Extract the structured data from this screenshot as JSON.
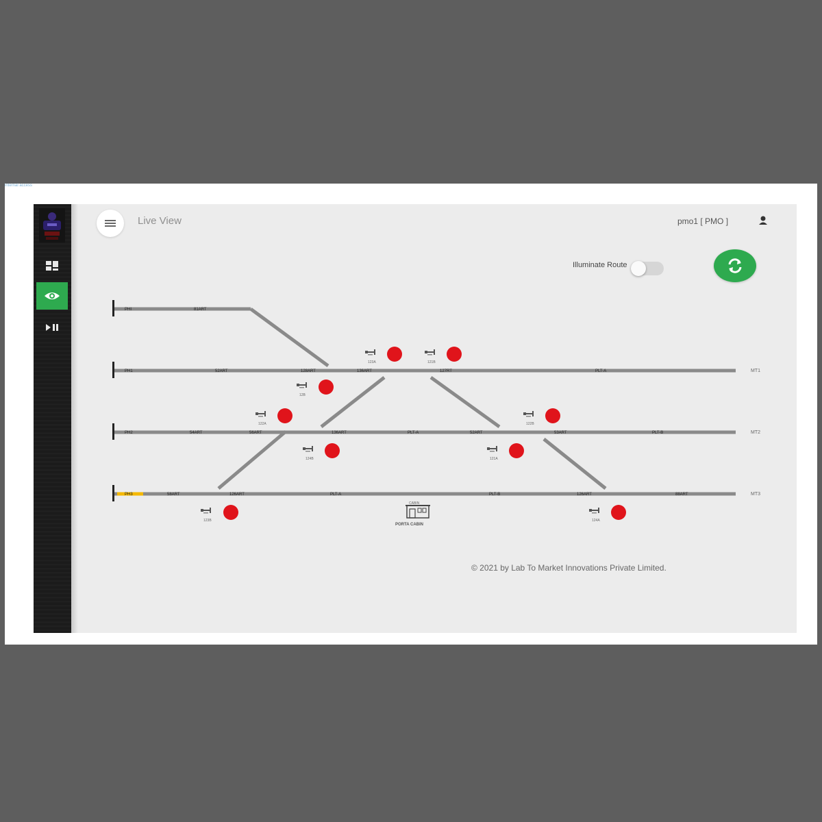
{
  "corner_link": "internal access",
  "header": {
    "title": "Live View",
    "user": "pmo1 [ PMO ]"
  },
  "sidebar": {
    "items": [
      {
        "icon": "dashboard-icon"
      },
      {
        "icon": "eye-icon",
        "active": true
      },
      {
        "icon": "play-pause-icon"
      }
    ]
  },
  "controls": {
    "illuminate_label": "Illuminate Route",
    "illuminate_on": false
  },
  "track": {
    "lines": [
      {
        "left_label": "PHI",
        "segments": [
          "81ART"
        ],
        "right_label": ""
      },
      {
        "left_label": "PH1",
        "segments": [
          "52ART",
          "128ART",
          "136ART",
          "127RT",
          "PLT-A"
        ],
        "right_label": "MT1"
      },
      {
        "left_label": "PH2",
        "segments": [
          "54ART",
          "56ART",
          "136ART",
          "PLT-A",
          "52ART",
          "53ART",
          "PLT-B"
        ],
        "right_label": "MT2"
      },
      {
        "left_label": "PH3",
        "segments": [
          "58ART",
          "126ART",
          "PLT-A",
          "PLT-B",
          "126ART",
          "88ART"
        ],
        "right_label": "MT3"
      }
    ],
    "signals": [
      {
        "id": "123A",
        "status": "red"
      },
      {
        "id": "121B",
        "status": "red"
      },
      {
        "id": "12B",
        "status": "red"
      },
      {
        "id": "122A",
        "status": "red"
      },
      {
        "id": "124B",
        "status": "red"
      },
      {
        "id": "122B",
        "status": "red"
      },
      {
        "id": "121A",
        "status": "red"
      },
      {
        "id": "123B",
        "status": "red"
      },
      {
        "id": "124A",
        "status": "red"
      }
    ],
    "cabin_label": "PORTA CABIN",
    "cabin_top_label": "CABIN"
  },
  "footer": "© 2021 by Lab To Market Innovations Private Limited.",
  "colors": {
    "accent": "#2eaa4f",
    "signal_red": "#e0141b",
    "track": "#8a8a8a",
    "highlight": "#f5b800"
  }
}
